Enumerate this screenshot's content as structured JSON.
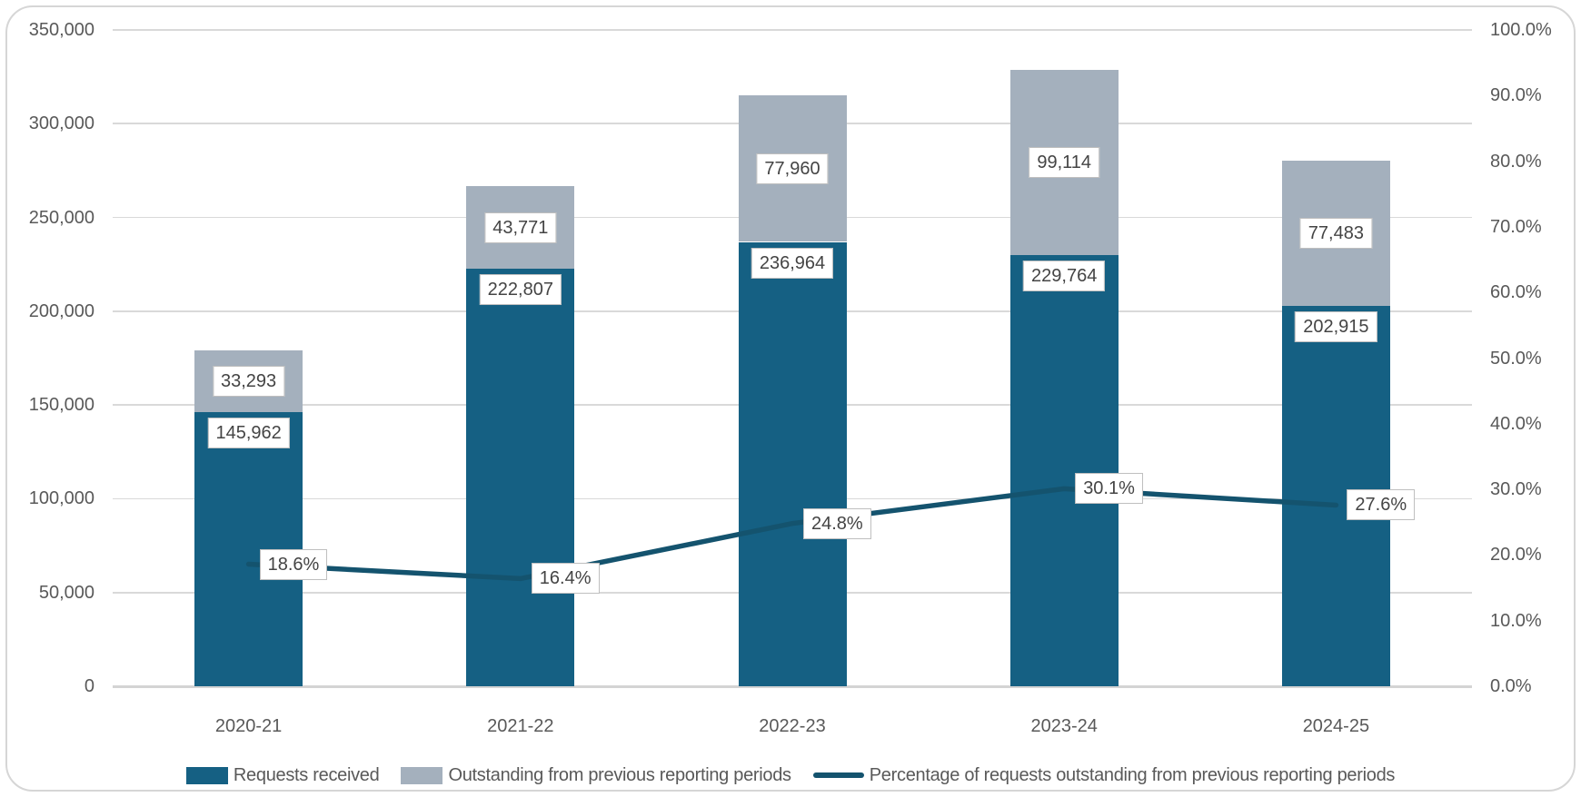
{
  "chart_data": {
    "type": "bar",
    "subtype": "stacked-bars-with-line-overlay",
    "categories": [
      "2020-21",
      "2021-22",
      "2022-23",
      "2023-24",
      "2024-25"
    ],
    "series": [
      {
        "name": "Requests received",
        "type": "bar",
        "color": "#156083",
        "values": [
          145962,
          222807,
          236964,
          229764,
          202915
        ],
        "labels": [
          "145,962",
          "222,807",
          "236,964",
          "229,764",
          "202,915"
        ]
      },
      {
        "name": "Outstanding from previous reporting periods",
        "type": "bar",
        "color": "#a4b0bd",
        "values": [
          33293,
          43771,
          77960,
          99114,
          77483
        ],
        "labels": [
          "33,293",
          "43,771",
          "77,960",
          "99,114",
          "77,483"
        ]
      },
      {
        "name": "Percentage of requests outstanding from previous reporting periods",
        "type": "line",
        "color": "#14536e",
        "values": [
          18.6,
          16.4,
          24.8,
          30.1,
          27.6
        ],
        "labels": [
          "18.6%",
          "16.4%",
          "24.8%",
          "30.1%",
          "27.6%"
        ]
      }
    ],
    "left_axis": {
      "min": 0,
      "max": 350000,
      "step": 50000,
      "ticks": [
        {
          "value": 350000,
          "label": "350,000"
        },
        {
          "value": 300000,
          "label": "300,000"
        },
        {
          "value": 250000,
          "label": "250,000"
        },
        {
          "value": 200000,
          "label": "200,000"
        },
        {
          "value": 150000,
          "label": "150,000"
        },
        {
          "value": 100000,
          "label": "100,000"
        },
        {
          "value": 50000,
          "label": "50,000"
        },
        {
          "value": 0,
          "label": "0"
        }
      ]
    },
    "right_axis": {
      "min": 0,
      "max": 100,
      "step": 10,
      "ticks": [
        {
          "value": 100,
          "label": "100.0%"
        },
        {
          "value": 90,
          "label": "90.0%"
        },
        {
          "value": 80,
          "label": "80.0%"
        },
        {
          "value": 70,
          "label": "70.0%"
        },
        {
          "value": 60,
          "label": "60.0%"
        },
        {
          "value": 50,
          "label": "50.0%"
        },
        {
          "value": 40,
          "label": "40.0%"
        },
        {
          "value": 30,
          "label": "30.0%"
        },
        {
          "value": 20,
          "label": "20.0%"
        },
        {
          "value": 10,
          "label": "10.0%"
        },
        {
          "value": 0,
          "label": "0.0%"
        }
      ]
    },
    "grid": true,
    "legend_position": "bottom"
  }
}
